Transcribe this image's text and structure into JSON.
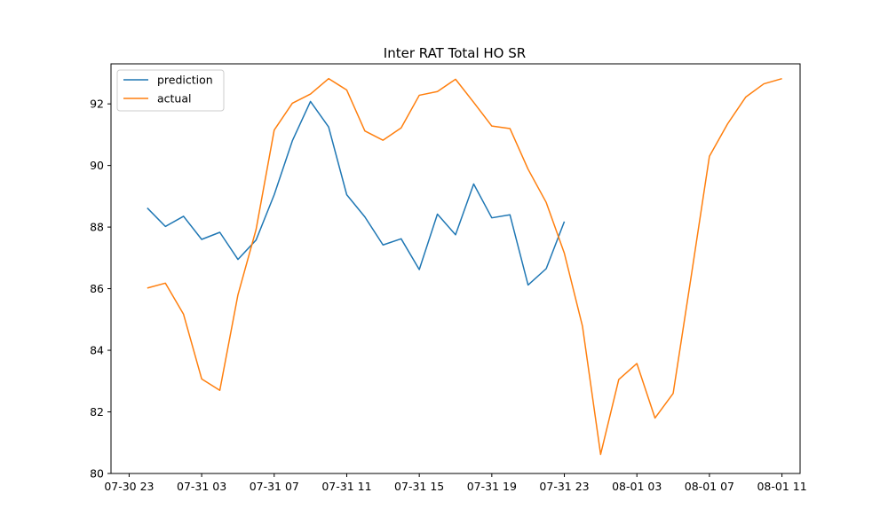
{
  "chart_data": {
    "type": "line",
    "title": "Inter RAT Total HO SR",
    "xlabel": "",
    "ylabel": "",
    "x_ticks": [
      "07-30 23",
      "07-31 03",
      "07-31 07",
      "07-31 11",
      "07-31 15",
      "07-31 19",
      "07-31 23",
      "08-01 03",
      "08-01 07",
      "08-01 11"
    ],
    "xlim": [
      "2023-07-30 22:00",
      "2023-08-01 12:00"
    ],
    "ylim": [
      80,
      93.3
    ],
    "y_ticks": [
      80,
      82,
      84,
      86,
      88,
      90,
      92
    ],
    "legend_position": "upper-left",
    "grid": false,
    "series": [
      {
        "name": "prediction",
        "color": "#1f77b4",
        "points": [
          [
            "2023-07-31 00:00",
            88.62
          ],
          [
            "2023-07-31 01:00",
            88.02
          ],
          [
            "2023-07-31 02:00",
            88.35
          ],
          [
            "2023-07-31 03:00",
            87.6
          ],
          [
            "2023-07-31 04:00",
            87.83
          ],
          [
            "2023-07-31 05:00",
            86.95
          ],
          [
            "2023-07-31 06:00",
            87.58
          ],
          [
            "2023-07-31 07:00",
            89.05
          ],
          [
            "2023-07-31 08:00",
            90.8
          ],
          [
            "2023-07-31 09:00",
            92.08
          ],
          [
            "2023-07-31 10:00",
            91.25
          ],
          [
            "2023-07-31 11:00",
            89.05
          ],
          [
            "2023-07-31 12:00",
            88.33
          ],
          [
            "2023-07-31 13:00",
            87.42
          ],
          [
            "2023-07-31 14:00",
            87.62
          ],
          [
            "2023-07-31 15:00",
            86.62
          ],
          [
            "2023-07-31 16:00",
            88.42
          ],
          [
            "2023-07-31 17:00",
            87.75
          ],
          [
            "2023-07-31 18:00",
            89.4
          ],
          [
            "2023-07-31 19:00",
            88.3
          ],
          [
            "2023-07-31 20:00",
            88.4
          ],
          [
            "2023-07-31 21:00",
            86.12
          ],
          [
            "2023-07-31 22:00",
            86.65
          ],
          [
            "2023-07-31 23:00",
            88.18
          ]
        ]
      },
      {
        "name": "actual",
        "color": "#ff7f0e",
        "points": [
          [
            "2023-07-31 00:00",
            86.02
          ],
          [
            "2023-07-31 01:00",
            86.18
          ],
          [
            "2023-07-31 02:00",
            85.17
          ],
          [
            "2023-07-31 03:00",
            83.07
          ],
          [
            "2023-07-31 04:00",
            82.7
          ],
          [
            "2023-07-31 05:00",
            85.8
          ],
          [
            "2023-07-31 06:00",
            87.92
          ],
          [
            "2023-07-31 07:00",
            91.15
          ],
          [
            "2023-07-31 08:00",
            92.02
          ],
          [
            "2023-07-31 09:00",
            92.32
          ],
          [
            "2023-07-31 10:00",
            92.82
          ],
          [
            "2023-07-31 11:00",
            92.45
          ],
          [
            "2023-07-31 12:00",
            91.12
          ],
          [
            "2023-07-31 13:00",
            90.82
          ],
          [
            "2023-07-31 14:00",
            91.22
          ],
          [
            "2023-07-31 15:00",
            92.28
          ],
          [
            "2023-07-31 16:00",
            92.4
          ],
          [
            "2023-07-31 17:00",
            92.8
          ],
          [
            "2023-07-31 18:00",
            92.05
          ],
          [
            "2023-07-31 19:00",
            91.28
          ],
          [
            "2023-07-31 20:00",
            91.2
          ],
          [
            "2023-07-31 21:00",
            89.88
          ],
          [
            "2023-07-31 22:00",
            88.8
          ],
          [
            "2023-07-31 23:00",
            87.15
          ],
          [
            "2023-08-01 00:00",
            84.78
          ],
          [
            "2023-08-01 01:00",
            80.62
          ],
          [
            "2023-08-01 02:00",
            83.05
          ],
          [
            "2023-08-01 03:00",
            83.57
          ],
          [
            "2023-08-01 04:00",
            81.8
          ],
          [
            "2023-08-01 05:00",
            82.6
          ],
          [
            "2023-08-01 06:00",
            86.42
          ],
          [
            "2023-08-01 07:00",
            90.3
          ],
          [
            "2023-08-01 08:00",
            91.35
          ],
          [
            "2023-08-01 09:00",
            92.22
          ],
          [
            "2023-08-01 10:00",
            92.65
          ],
          [
            "2023-08-01 11:00",
            92.82
          ]
        ]
      }
    ]
  }
}
